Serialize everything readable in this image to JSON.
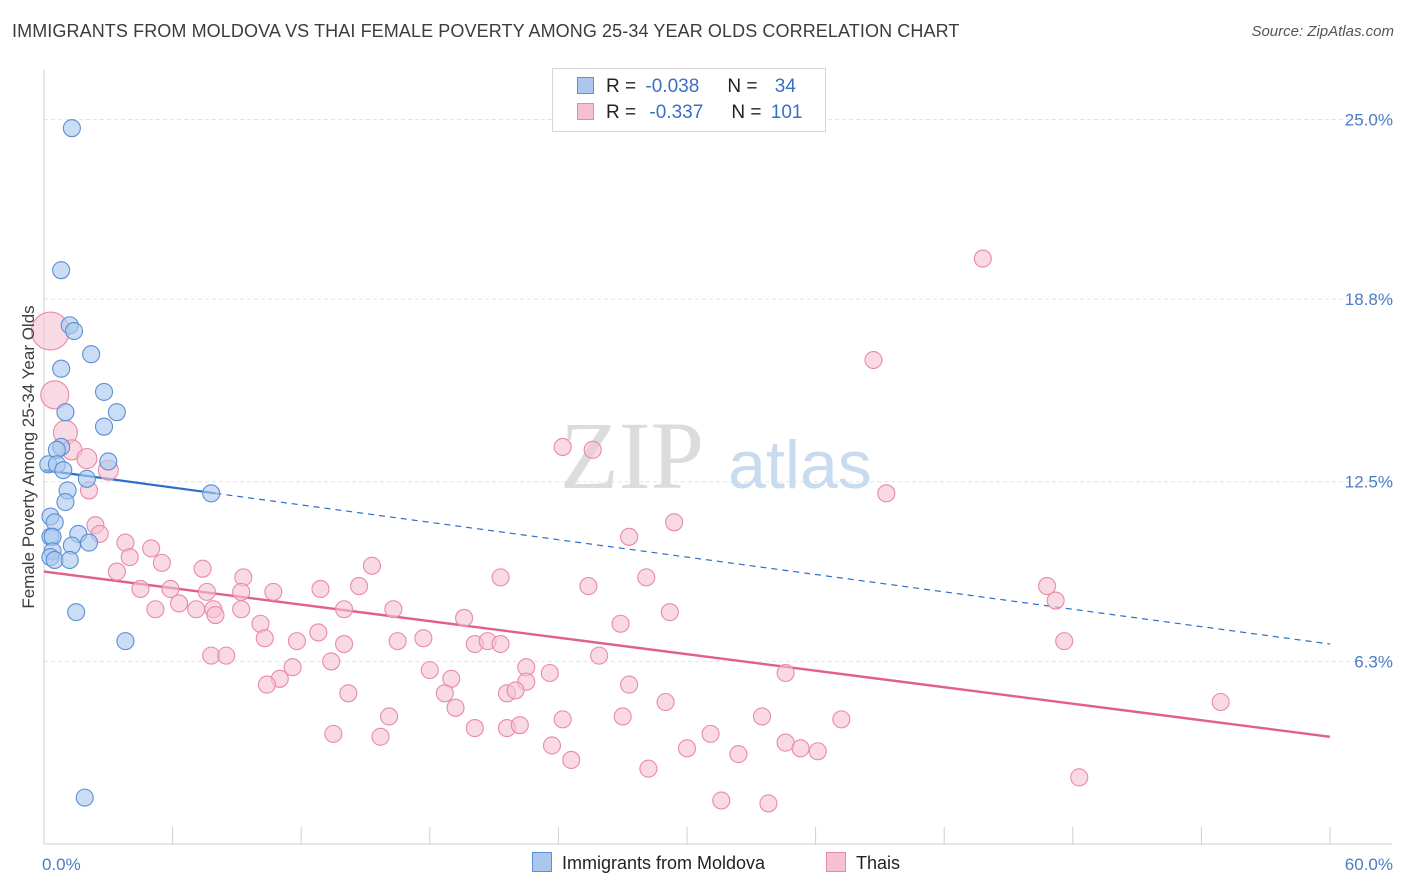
{
  "title": "IMMIGRANTS FROM MOLDOVA VS THAI FEMALE POVERTY AMONG 25-34 YEAR OLDS CORRELATION CHART",
  "source": "Source: ZipAtlas.com",
  "watermark": {
    "zip": "ZIP",
    "atlas": "atlas"
  },
  "legend": {
    "r_label": "R =",
    "n_label": "N =",
    "rows": [
      {
        "series": "Immigrants from Moldova",
        "r": "-0.038",
        "n": "34"
      },
      {
        "series": "Thais",
        "r": "-0.337",
        "n": "101"
      }
    ]
  },
  "colors": {
    "blue_fill": "#aac8ee",
    "blue_stroke": "#5b8fd6",
    "blue_line": "#2a6fcc",
    "pink_fill": "#f5c1d2",
    "pink_stroke": "#e98aa8",
    "pink_line": "#e0608a",
    "tick_text": "#4a7cc7",
    "grid": "#e4e4e4"
  },
  "chart_data": {
    "type": "scatter",
    "title": "IMMIGRANTS FROM MOLDOVA VS THAI FEMALE POVERTY AMONG 25-34 YEAR OLDS CORRELATION CHART",
    "xlabel": "",
    "ylabel": "Female Poverty Among 25-34 Year Olds",
    "xlim": [
      0,
      60
    ],
    "ylim": [
      0,
      26.5
    ],
    "x_tick_labels": [
      "0.0%",
      "60.0%"
    ],
    "y_ticks": [
      6.3,
      12.5,
      18.8,
      25.0
    ],
    "y_tick_labels": [
      "6.3%",
      "12.5%",
      "18.8%",
      "25.0%"
    ],
    "series": [
      {
        "name": "Immigrants from Moldova",
        "r": -0.038,
        "n": 34,
        "trend": {
          "x0": 0,
          "y0": 12.9,
          "x1": 60,
          "y1": 6.9,
          "solid_until_x": 8
        },
        "points": [
          [
            1.3,
            24.7
          ],
          [
            0.8,
            19.8
          ],
          [
            1.2,
            17.9
          ],
          [
            1.4,
            17.7
          ],
          [
            2.2,
            16.9
          ],
          [
            0.8,
            16.4
          ],
          [
            2.8,
            15.6
          ],
          [
            1.0,
            14.9
          ],
          [
            3.4,
            14.9
          ],
          [
            2.8,
            14.4
          ],
          [
            0.8,
            13.7
          ],
          [
            0.6,
            13.6
          ],
          [
            0.2,
            13.1
          ],
          [
            0.6,
            13.1
          ],
          [
            3.0,
            13.2
          ],
          [
            0.9,
            12.9
          ],
          [
            2.0,
            12.6
          ],
          [
            1.1,
            12.2
          ],
          [
            7.8,
            12.1
          ],
          [
            1.0,
            11.8
          ],
          [
            0.3,
            11.3
          ],
          [
            0.5,
            11.1
          ],
          [
            0.3,
            10.6
          ],
          [
            0.4,
            10.6
          ],
          [
            1.6,
            10.7
          ],
          [
            2.1,
            10.4
          ],
          [
            1.3,
            10.3
          ],
          [
            0.4,
            10.1
          ],
          [
            0.3,
            9.9
          ],
          [
            0.5,
            9.8
          ],
          [
            1.2,
            9.8
          ],
          [
            1.5,
            8.0
          ],
          [
            3.8,
            7.0
          ],
          [
            1.9,
            1.6
          ]
        ]
      },
      {
        "name": "Thais",
        "r": -0.337,
        "n": 101,
        "trend": {
          "x0": 0,
          "y0": 9.4,
          "x1": 60,
          "y1": 3.7
        },
        "points": [
          [
            0.3,
            17.7
          ],
          [
            0.5,
            15.5
          ],
          [
            1.0,
            14.2
          ],
          [
            1.3,
            13.6
          ],
          [
            2.0,
            13.3
          ],
          [
            3.0,
            12.9
          ],
          [
            2.1,
            12.2
          ],
          [
            2.4,
            11.0
          ],
          [
            2.6,
            10.7
          ],
          [
            3.8,
            10.4
          ],
          [
            5.0,
            10.2
          ],
          [
            4.0,
            9.9
          ],
          [
            5.5,
            9.7
          ],
          [
            7.4,
            9.5
          ],
          [
            3.4,
            9.4
          ],
          [
            9.3,
            9.2
          ],
          [
            15.3,
            9.6
          ],
          [
            21.3,
            9.2
          ],
          [
            4.5,
            8.8
          ],
          [
            5.9,
            8.8
          ],
          [
            7.6,
            8.7
          ],
          [
            9.2,
            8.7
          ],
          [
            10.7,
            8.7
          ],
          [
            12.9,
            8.8
          ],
          [
            14.7,
            8.9
          ],
          [
            5.2,
            8.1
          ],
          [
            6.3,
            8.3
          ],
          [
            7.1,
            8.1
          ],
          [
            7.9,
            8.1
          ],
          [
            9.2,
            8.1
          ],
          [
            16.3,
            8.1
          ],
          [
            19.6,
            7.8
          ],
          [
            8.0,
            7.9
          ],
          [
            10.1,
            7.6
          ],
          [
            10.3,
            7.1
          ],
          [
            11.8,
            7.0
          ],
          [
            12.8,
            7.3
          ],
          [
            14.0,
            6.9
          ],
          [
            16.5,
            7.0
          ],
          [
            17.7,
            7.1
          ],
          [
            20.1,
            6.9
          ],
          [
            20.7,
            7.0
          ],
          [
            21.3,
            6.9
          ],
          [
            7.8,
            6.5
          ],
          [
            8.5,
            6.5
          ],
          [
            11.0,
            5.7
          ],
          [
            13.4,
            6.3
          ],
          [
            11.6,
            6.1
          ],
          [
            18.0,
            6.0
          ],
          [
            19.0,
            5.7
          ],
          [
            22.5,
            6.1
          ],
          [
            23.6,
            5.9
          ],
          [
            22.5,
            5.6
          ],
          [
            25.9,
            6.5
          ],
          [
            27.3,
            5.5
          ],
          [
            10.4,
            5.5
          ],
          [
            14.2,
            5.2
          ],
          [
            18.7,
            5.2
          ],
          [
            19.2,
            4.7
          ],
          [
            21.6,
            5.2
          ],
          [
            22.0,
            5.3
          ],
          [
            16.1,
            4.4
          ],
          [
            20.1,
            4.0
          ],
          [
            21.6,
            4.0
          ],
          [
            22.2,
            4.1
          ],
          [
            13.5,
            3.8
          ],
          [
            15.7,
            3.7
          ],
          [
            23.7,
            3.4
          ],
          [
            24.2,
            4.3
          ],
          [
            24.6,
            2.9
          ],
          [
            27.0,
            4.4
          ],
          [
            29.0,
            4.9
          ],
          [
            30.0,
            3.3
          ],
          [
            31.1,
            3.8
          ],
          [
            32.4,
            3.1
          ],
          [
            33.5,
            4.4
          ],
          [
            34.6,
            3.5
          ],
          [
            35.3,
            3.3
          ],
          [
            36.1,
            3.2
          ],
          [
            37.2,
            4.3
          ],
          [
            28.2,
            2.6
          ],
          [
            31.6,
            1.5
          ],
          [
            33.8,
            1.4
          ],
          [
            27.3,
            10.6
          ],
          [
            29.4,
            11.1
          ],
          [
            24.2,
            13.7
          ],
          [
            25.6,
            13.6
          ],
          [
            25.4,
            8.9
          ],
          [
            26.9,
            7.6
          ],
          [
            28.1,
            9.2
          ],
          [
            29.2,
            8.0
          ],
          [
            34.6,
            5.9
          ],
          [
            38.7,
            16.7
          ],
          [
            39.3,
            12.1
          ],
          [
            43.8,
            20.2
          ],
          [
            46.8,
            8.9
          ],
          [
            47.2,
            8.4
          ],
          [
            47.6,
            7.0
          ],
          [
            48.3,
            2.3
          ],
          [
            54.9,
            4.9
          ],
          [
            14.0,
            8.1
          ]
        ]
      }
    ]
  }
}
